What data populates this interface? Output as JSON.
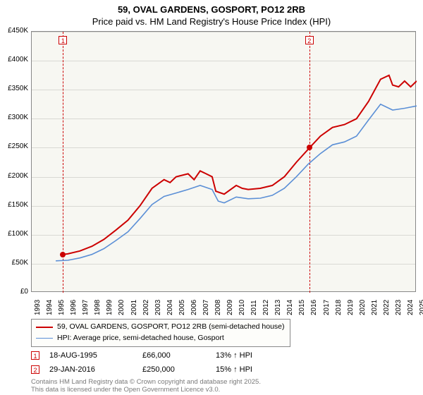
{
  "title": {
    "line1": "59, OVAL GARDENS, GOSPORT, PO12 2RB",
    "line2": "Price paid vs. HM Land Registry's House Price Index (HPI)"
  },
  "chart": {
    "type": "line",
    "plot_bg": "#f7f7f2",
    "grid_color": "#d9d9d4",
    "axis_color": "#888888",
    "y": {
      "min": 0,
      "max": 450000,
      "step": 50000,
      "labels": [
        "£0",
        "£50K",
        "£100K",
        "£150K",
        "£200K",
        "£250K",
        "£300K",
        "£350K",
        "£400K",
        "£450K"
      ],
      "fontsize": 10
    },
    "x": {
      "years": [
        1993,
        1994,
        1995,
        1996,
        1997,
        1998,
        1999,
        2000,
        2001,
        2002,
        2003,
        2004,
        2005,
        2006,
        2007,
        2008,
        2009,
        2010,
        2011,
        2012,
        2013,
        2014,
        2015,
        2016,
        2017,
        2018,
        2019,
        2020,
        2021,
        2022,
        2023,
        2024,
        2025
      ],
      "fontsize": 10
    },
    "series": [
      {
        "name": "price_paid",
        "label": "59, OVAL GARDENS, GOSPORT, PO12 2RB (semi-detached house)",
        "color": "#cc0000",
        "width": 2,
        "data": [
          [
            1995.6,
            66000
          ],
          [
            1996,
            67000
          ],
          [
            1997,
            72000
          ],
          [
            1998,
            80000
          ],
          [
            1999,
            92000
          ],
          [
            2000,
            108000
          ],
          [
            2001,
            125000
          ],
          [
            2002,
            150000
          ],
          [
            2003,
            180000
          ],
          [
            2004,
            195000
          ],
          [
            2004.5,
            190000
          ],
          [
            2005,
            200000
          ],
          [
            2006,
            205000
          ],
          [
            2006.5,
            195000
          ],
          [
            2007,
            210000
          ],
          [
            2007.5,
            205000
          ],
          [
            2008,
            200000
          ],
          [
            2008.3,
            175000
          ],
          [
            2009,
            170000
          ],
          [
            2010,
            185000
          ],
          [
            2010.5,
            180000
          ],
          [
            2011,
            178000
          ],
          [
            2012,
            180000
          ],
          [
            2013,
            185000
          ],
          [
            2014,
            200000
          ],
          [
            2015,
            225000
          ],
          [
            2016.1,
            250000
          ],
          [
            2017,
            270000
          ],
          [
            2018,
            285000
          ],
          [
            2019,
            290000
          ],
          [
            2020,
            300000
          ],
          [
            2021,
            330000
          ],
          [
            2022,
            368000
          ],
          [
            2022.7,
            375000
          ],
          [
            2023,
            358000
          ],
          [
            2023.5,
            355000
          ],
          [
            2024,
            365000
          ],
          [
            2024.5,
            355000
          ],
          [
            2025,
            365000
          ]
        ]
      },
      {
        "name": "hpi",
        "label": "HPI: Average price, semi-detached house, Gosport",
        "color": "#5b8fd6",
        "width": 1.6,
        "data": [
          [
            1995,
            55000
          ],
          [
            1996,
            56000
          ],
          [
            1997,
            60000
          ],
          [
            1998,
            66000
          ],
          [
            1999,
            76000
          ],
          [
            2000,
            90000
          ],
          [
            2001,
            105000
          ],
          [
            2002,
            128000
          ],
          [
            2003,
            152000
          ],
          [
            2004,
            166000
          ],
          [
            2005,
            172000
          ],
          [
            2006,
            178000
          ],
          [
            2007,
            185000
          ],
          [
            2008,
            178000
          ],
          [
            2008.5,
            158000
          ],
          [
            2009,
            155000
          ],
          [
            2010,
            165000
          ],
          [
            2011,
            162000
          ],
          [
            2012,
            163000
          ],
          [
            2013,
            168000
          ],
          [
            2014,
            180000
          ],
          [
            2015,
            200000
          ],
          [
            2016,
            222000
          ],
          [
            2017,
            240000
          ],
          [
            2018,
            255000
          ],
          [
            2019,
            260000
          ],
          [
            2020,
            270000
          ],
          [
            2021,
            298000
          ],
          [
            2022,
            325000
          ],
          [
            2023,
            315000
          ],
          [
            2024,
            318000
          ],
          [
            2025,
            322000
          ]
        ]
      }
    ],
    "markers": [
      {
        "n": "1",
        "year": 1995.6,
        "value": 66000
      },
      {
        "n": "2",
        "year": 2016.08,
        "value": 250000
      }
    ]
  },
  "legend": {
    "rows": [
      {
        "color": "#cc0000",
        "width": 2,
        "label": "59, OVAL GARDENS, GOSPORT, PO12 2RB (semi-detached house)"
      },
      {
        "color": "#5b8fd6",
        "width": 1.6,
        "label": "HPI: Average price, semi-detached house, Gosport"
      }
    ]
  },
  "sales": [
    {
      "n": "1",
      "date": "18-AUG-1995",
      "price": "£66,000",
      "pct": "13% ↑ HPI"
    },
    {
      "n": "2",
      "date": "29-JAN-2016",
      "price": "£250,000",
      "pct": "15% ↑ HPI"
    }
  ],
  "attribution": {
    "line1": "Contains HM Land Registry data © Crown copyright and database right 2025.",
    "line2": "This data is licensed under the Open Government Licence v3.0."
  }
}
